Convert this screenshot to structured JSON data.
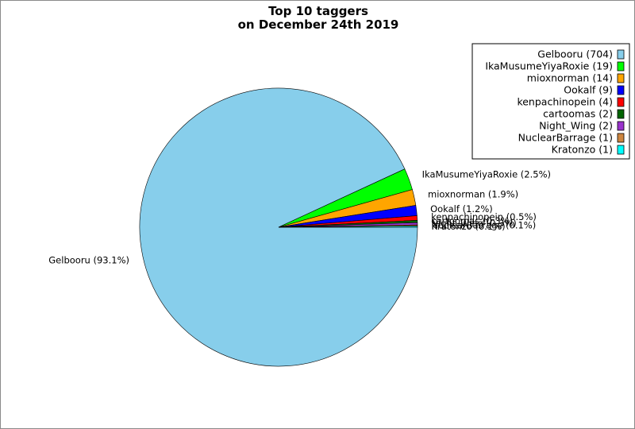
{
  "chart_data": {
    "type": "pie",
    "title": "Top 10 taggers",
    "subtitle": "on December 24th 2019",
    "legend_position": "top-right",
    "slices": [
      {
        "name": "Gelbooru",
        "value": 704,
        "legend": "Gelbooru (704)",
        "label": "Gelbooru (93.1%)",
        "color": "#87ceeb"
      },
      {
        "name": "IkaMusumeYiyaRoxie",
        "value": 19,
        "legend": "IkaMusumeYiyaRoxie (19)",
        "label": "IkaMusumeYiyaRoxie (2.5%)",
        "color": "#00ff00"
      },
      {
        "name": "mioxnorman",
        "value": 14,
        "legend": "mioxnorman (14)",
        "label": "mioxnorman (1.9%)",
        "color": "#ffa500"
      },
      {
        "name": "Ookalf",
        "value": 9,
        "legend": "Ookalf (9)",
        "label": "Ookalf (1.2%)",
        "color": "#0000ff"
      },
      {
        "name": "kenpachinopein",
        "value": 4,
        "legend": "kenpachinopein (4)",
        "label": "kenpachinopein (0.5%)",
        "color": "#ff0000"
      },
      {
        "name": "cartoomas",
        "value": 2,
        "legend": "cartoomas (2)",
        "label": "cartoomas (0.3%)",
        "color": "#006400"
      },
      {
        "name": "Night_Wing",
        "value": 2,
        "legend": "Night_Wing (2)",
        "label": "Night_Wing (0.3%)",
        "color": "#9932cc"
      },
      {
        "name": "NuclearBarrage",
        "value": 1,
        "legend": "NuclearBarrage (1)",
        "label": "NuclearBarrage (0.1%)",
        "color": "#cd853f"
      },
      {
        "name": "Kratonzo",
        "value": 1,
        "legend": "Kratonzo (1)",
        "label": "Kratonzo (0.1%)",
        "color": "#00ffff"
      }
    ]
  }
}
